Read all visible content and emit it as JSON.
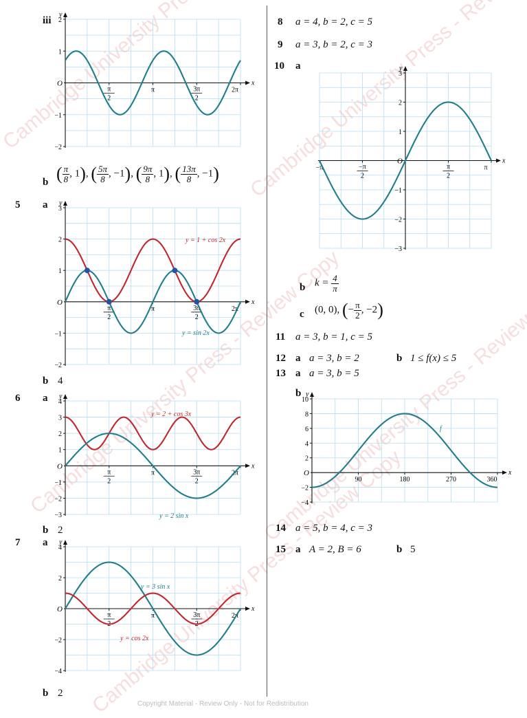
{
  "watermark": "Cambridge University Press - Review Copy",
  "footer": "Copyright Material - Review Only - Not for Redistribution",
  "items": {
    "q4iii_label": "iii",
    "q4b_label": "b",
    "q4b_points": [
      "π/8, 1",
      "5π/8, −1",
      "9π/8, 1",
      "13π/8, −1"
    ],
    "q5": "5",
    "q5a": "a",
    "q5b_label": "b",
    "q5b_value": "4",
    "q6": "6",
    "q6a": "a",
    "q6b_label": "b",
    "q6b_value": "2",
    "q7": "7",
    "q7a": "a",
    "q7b_label": "b",
    "q7b_value": "2",
    "q8": "8",
    "q8_text": "a = 4, b = 2, c = 5",
    "q9": "9",
    "q9_text": "a = 3, b = 2, c = 3",
    "q10": "10",
    "q10a": "a",
    "q10b_label": "b",
    "q10b_text": "k =",
    "q10b_num": "4",
    "q10b_den": "π",
    "q10c_label": "c",
    "q10c_text": "(0, 0),",
    "q10c_pt_num": "π",
    "q10c_pt_den": "2",
    "q11": "11",
    "q11_text": "a = 3, b = 1, c = 5",
    "q12": "12",
    "q12a": "a",
    "q12a_text": "a = 3, b = 2",
    "q12b": "b",
    "q12b_text": "1 ≤ f(x) ≤ 5",
    "q13": "13",
    "q13a": "a",
    "q13a_text": "a = 3, b = 5",
    "q13b": "b",
    "q14": "14",
    "q14_text": "a = 5, b = 4, c = 3",
    "q15": "15",
    "q15a": "a",
    "q15a_text": "A = 2, B = 6",
    "q15b": "b",
    "q15b_text": "5"
  },
  "graphs": {
    "g4iii": {
      "xlabel": "x",
      "ylabel": "y",
      "origin": "O",
      "xlim": [
        0,
        6.2832
      ],
      "ylim": [
        -2,
        2
      ],
      "yticks": [
        2,
        1,
        -1,
        -2
      ],
      "xticks": [
        {
          "label": "π/2",
          "v": 1.5708
        },
        {
          "label": "π",
          "v": 3.1416
        },
        {
          "label": "3π/2",
          "v": 4.7124
        },
        {
          "label": "2π",
          "v": 6.2832
        }
      ],
      "curves": [
        {
          "label": "",
          "color": "#1f7d8c",
          "fn": "sin(2x + π/4)"
        }
      ],
      "points": []
    },
    "g5": {
      "xlabel": "x",
      "ylabel": "y",
      "origin": "O",
      "xlim": [
        0,
        6.2832
      ],
      "ylim": [
        -2,
        3
      ],
      "yticks": [
        3,
        2,
        1,
        -1,
        -2
      ],
      "xticks": [
        {
          "label": "π/2",
          "v": 1.5708
        },
        {
          "label": "π",
          "v": 3.1416
        },
        {
          "label": "3π/2",
          "v": 4.7124
        },
        {
          "label": "2π",
          "v": 6.2832
        }
      ],
      "curves": [
        {
          "label": "y = 1 + cos 2x",
          "color": "#c1272d",
          "fn": "1 + cos 2x"
        },
        {
          "label": "y = sin 2x",
          "color": "#1f7d8c",
          "fn": "sin 2x"
        }
      ],
      "points": [
        {
          "x": 0.7854,
          "y": 1
        },
        {
          "x": 1.5708,
          "y": 0
        },
        {
          "x": 3.927,
          "y": 1
        },
        {
          "x": 4.7124,
          "y": 0
        }
      ]
    },
    "g6": {
      "xlabel": "x",
      "ylabel": "y",
      "origin": "O",
      "xlim": [
        0,
        6.2832
      ],
      "ylim": [
        -3,
        4
      ],
      "yticks": [
        4,
        3,
        2,
        1,
        -1,
        -2,
        -3
      ],
      "xticks": [
        {
          "label": "π/2",
          "v": 1.5708
        },
        {
          "label": "π",
          "v": 3.1416
        },
        {
          "label": "3π/2",
          "v": 4.7124
        },
        {
          "label": "2π",
          "v": 6.2832
        }
      ],
      "curves": [
        {
          "label": "y = 2 + cos 3x",
          "color": "#c1272d",
          "fn": "2 + cos 3x"
        },
        {
          "label": "y = 2 sin x",
          "color": "#1f7d8c",
          "fn": "2 sin x"
        }
      ],
      "points": []
    },
    "g7": {
      "xlabel": "x",
      "ylabel": "y",
      "origin": "O",
      "xlim": [
        0,
        6.2832
      ],
      "ylim": [
        -4,
        4
      ],
      "yticks": [
        4,
        2,
        -2,
        -4
      ],
      "xticks": [
        {
          "label": "π/2",
          "v": 1.5708
        },
        {
          "label": "π",
          "v": 3.1416
        },
        {
          "label": "3π/2",
          "v": 4.7124
        },
        {
          "label": "2π",
          "v": 6.2832
        }
      ],
      "curves": [
        {
          "label": "y = 3 sin x",
          "color": "#1f7d8c",
          "fn": "3 sin x"
        },
        {
          "label": "y = cos 2x",
          "color": "#c1272d",
          "fn": "cos 2x"
        }
      ],
      "points": []
    },
    "g10": {
      "xlabel": "x",
      "ylabel": "y",
      "origin": "O",
      "xlim": [
        -3.1416,
        3.1416
      ],
      "ylim": [
        -3,
        3
      ],
      "yticks": [
        3,
        2,
        1,
        -1,
        -2,
        -3
      ],
      "xticks": [
        {
          "label": "−π",
          "v": -3.1416
        },
        {
          "label": "−π/2",
          "v": -1.5708
        },
        {
          "label": "π/2",
          "v": 1.5708
        },
        {
          "label": "π",
          "v": 3.1416
        }
      ],
      "curves": [
        {
          "label": "",
          "color": "#1f7d8c",
          "fn": "2 sin x"
        }
      ],
      "points": []
    },
    "g13": {
      "xlabel": "x",
      "ylabel": "y",
      "origin": "O",
      "xlim": [
        0,
        360
      ],
      "ylim": [
        -4,
        10
      ],
      "yticks": [
        10,
        8,
        6,
        4,
        2,
        -2,
        -4
      ],
      "xticks": [
        {
          "label": "90",
          "v": 90
        },
        {
          "label": "180",
          "v": 180
        },
        {
          "label": "270",
          "v": 270
        },
        {
          "label": "360",
          "v": 360
        }
      ],
      "curves": [
        {
          "label": "f",
          "color": "#1f7d8c",
          "fn": "3 - 5 cos x"
        }
      ],
      "points": []
    }
  }
}
